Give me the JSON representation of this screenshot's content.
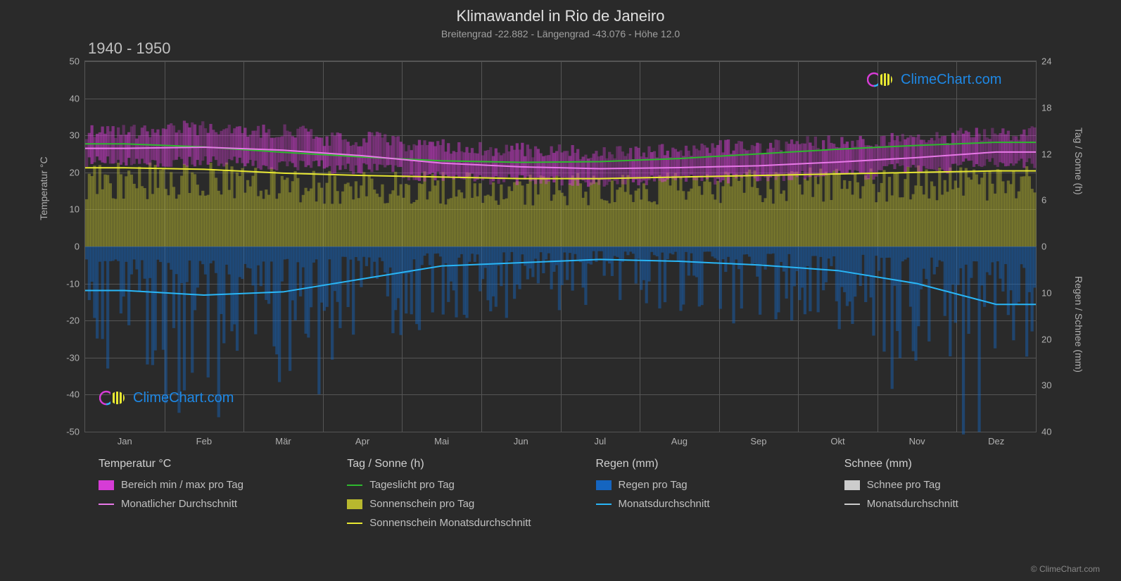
{
  "title": "Klimawandel in Rio de Janeiro",
  "subtitle": "Breitengrad -22.882 - Längengrad -43.076 - Höhe 12.0",
  "period": "1940 - 1950",
  "watermark_text": "ClimeChart.com",
  "copyright": "© ClimeChart.com",
  "colors": {
    "background": "#2a2a2a",
    "grid": "#555555",
    "text": "#c0c0c0",
    "temp_range": "#d63cd6",
    "temp_line": "#e878e8",
    "daylight": "#2eb82e",
    "sunshine_fill": "#b8b82e",
    "sunshine_line": "#e8e832",
    "rain_fill": "#1565c0",
    "rain_line": "#29b6f6",
    "snow_fill": "#cccccc",
    "snow_line": "#cccccc",
    "brand": "#1e88e5"
  },
  "left_axis": {
    "label": "Temperatur °C",
    "min": -50,
    "max": 50,
    "ticks": [
      -50,
      -40,
      -30,
      -20,
      -10,
      0,
      10,
      20,
      30,
      40,
      50
    ]
  },
  "right_axis_top": {
    "label": "Tag / Sonne (h)",
    "min": 0,
    "max": 24,
    "ticks": [
      0,
      6,
      12,
      18,
      24
    ]
  },
  "right_axis_bottom": {
    "label": "Regen / Schnee (mm)",
    "min": 0,
    "max": 40,
    "ticks": [
      0,
      10,
      20,
      30,
      40
    ]
  },
  "x_axis": {
    "labels": [
      "Jan",
      "Feb",
      "Mär",
      "Apr",
      "Mai",
      "Jun",
      "Jul",
      "Aug",
      "Sep",
      "Okt",
      "Nov",
      "Dez"
    ]
  },
  "series": {
    "temp_monthly_avg": [
      26.5,
      26.8,
      26.0,
      24.5,
      22.5,
      21.5,
      21.0,
      21.3,
      21.8,
      22.8,
      24.0,
      25.5
    ],
    "temp_min_band": [
      23,
      23,
      22,
      21,
      19,
      18,
      17.5,
      18,
      18.5,
      19.5,
      21,
      22.5
    ],
    "temp_max_band": [
      31,
      32,
      31,
      29,
      27,
      26,
      25.5,
      26,
      27,
      28,
      29,
      30.5
    ],
    "daylight_hours": [
      13.3,
      12.9,
      12.2,
      11.6,
      11.1,
      10.9,
      11.0,
      11.4,
      12.0,
      12.6,
      13.1,
      13.5
    ],
    "sunshine_hours": [
      10.2,
      10.0,
      9.5,
      9.2,
      9.0,
      8.8,
      8.8,
      9.0,
      9.2,
      9.4,
      9.6,
      9.8
    ],
    "sunshine_fill_max": [
      10.2,
      10.0,
      9.5,
      9.2,
      9.0,
      8.8,
      8.8,
      9.0,
      9.2,
      9.4,
      9.6,
      9.8
    ],
    "rain_monthly_avg": [
      9.5,
      10.5,
      9.8,
      7.0,
      4.2,
      3.5,
      2.8,
      3.2,
      4.0,
      5.2,
      8.0,
      12.5
    ],
    "rain_daily_max": [
      28,
      30,
      27,
      22,
      15,
      12,
      10,
      11,
      14,
      18,
      24,
      32
    ]
  },
  "legend": {
    "groups": [
      {
        "header": "Temperatur °C",
        "items": [
          {
            "type": "box",
            "color": "#d63cd6",
            "label": "Bereich min / max pro Tag"
          },
          {
            "type": "line",
            "color": "#e878e8",
            "label": "Monatlicher Durchschnitt"
          }
        ]
      },
      {
        "header": "Tag / Sonne (h)",
        "items": [
          {
            "type": "line",
            "color": "#2eb82e",
            "label": "Tageslicht pro Tag"
          },
          {
            "type": "box",
            "color": "#b8b82e",
            "label": "Sonnenschein pro Tag"
          },
          {
            "type": "line",
            "color": "#e8e832",
            "label": "Sonnenschein Monatsdurchschnitt"
          }
        ]
      },
      {
        "header": "Regen (mm)",
        "items": [
          {
            "type": "box",
            "color": "#1565c0",
            "label": "Regen pro Tag"
          },
          {
            "type": "line",
            "color": "#29b6f6",
            "label": "Monatsdurchschnitt"
          }
        ]
      },
      {
        "header": "Schnee (mm)",
        "items": [
          {
            "type": "box",
            "color": "#cccccc",
            "label": "Schnee pro Tag"
          },
          {
            "type": "line",
            "color": "#cccccc",
            "label": "Monatsdurchschnitt"
          }
        ]
      }
    ]
  },
  "plot_style": {
    "line_width": 2,
    "temp_band_opacity": 0.55,
    "sunshine_opacity": 0.45,
    "rain_opacity": 0.45
  }
}
